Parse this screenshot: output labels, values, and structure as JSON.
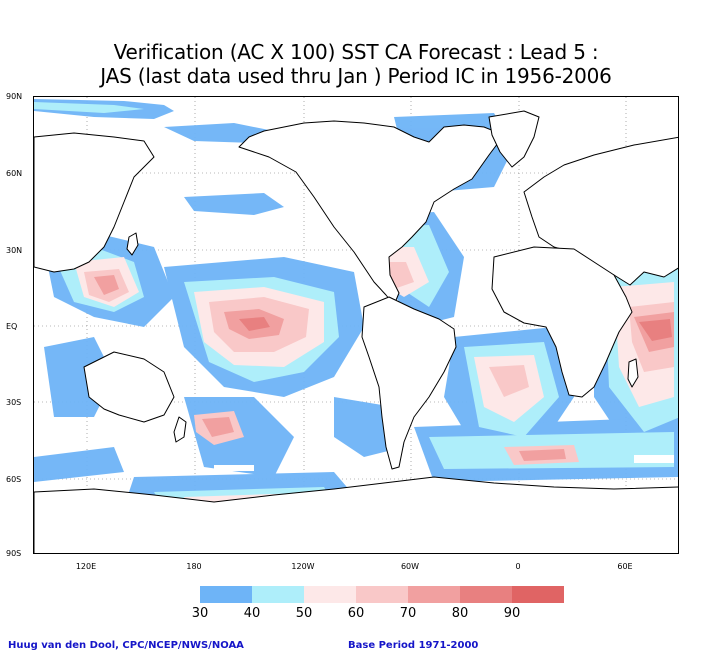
{
  "title_line1": "Verification (AC X 100) SST CA Forecast : Lead 5 :",
  "title_line2": "JAS (last data used thru Jan ) Period IC in 1956-2006",
  "lat_labels": [
    "90N",
    "60N",
    "30N",
    "EQ",
    "30S",
    "60S",
    "90S"
  ],
  "lon_labels": [
    "120E",
    "180",
    "120W",
    "60W",
    "0",
    "60E"
  ],
  "legend": {
    "colors": [
      "#6eb4f7",
      "#aeeefa",
      "#fde8e8",
      "#f9c8c8",
      "#f1a0a0",
      "#e88080",
      "#e06464"
    ],
    "labels": [
      "30",
      "40",
      "50",
      "60",
      "70",
      "80",
      "90"
    ]
  },
  "footer_left": "Huug van den Dool, CPC/NCEP/NWS/NOAA",
  "footer_right": "Base Period 1971-2000",
  "map": {
    "ocean_background": "#ffffff",
    "land_outline": "#000000",
    "grid_style": "dotted"
  }
}
